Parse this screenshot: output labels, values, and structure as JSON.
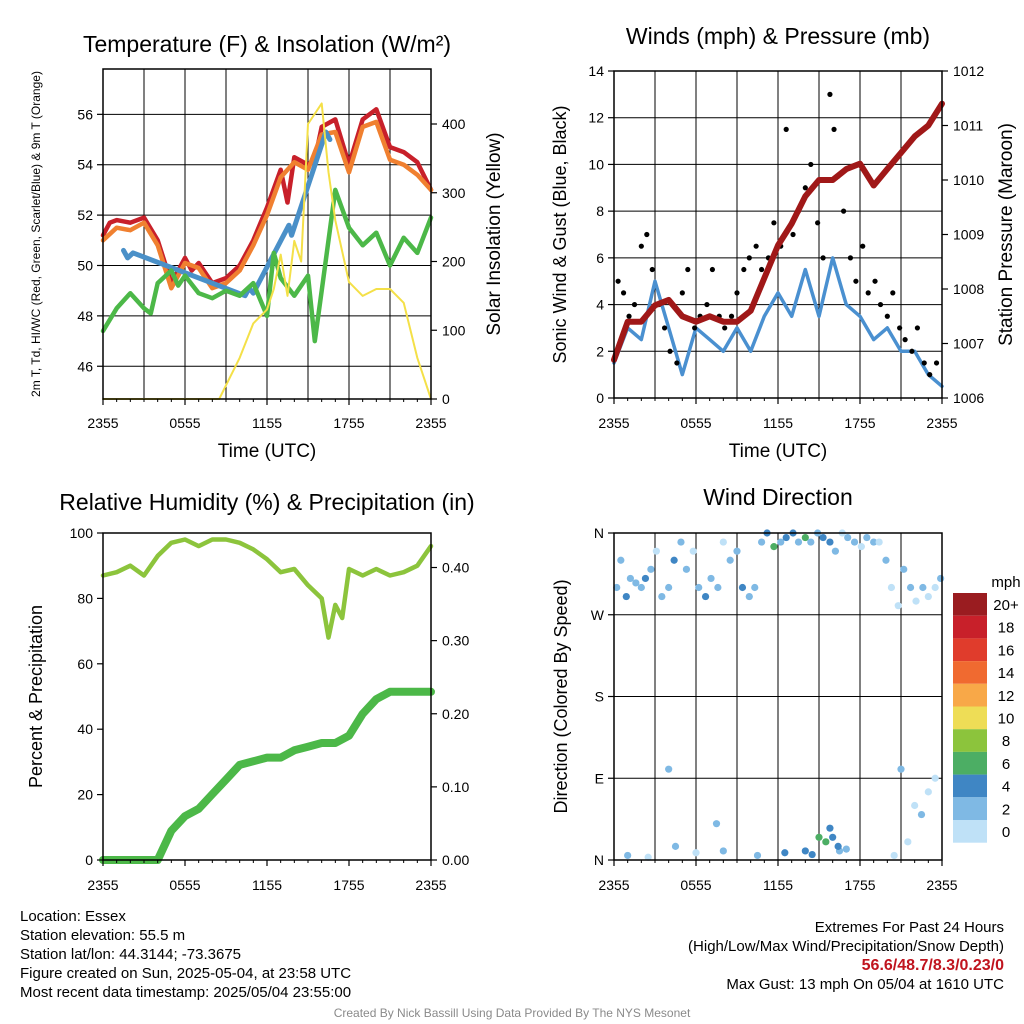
{
  "chart_data": [
    {
      "type": "line",
      "title": "Temperature (F) & Insolation (W/m²)",
      "xlabel": "Time (UTC)",
      "ylabel": "2m T, Td, HI/WC (Red, Green, Scarlet/Blue) & 9m T (Orange)",
      "y2label": "Solar Insolation (Yellow)",
      "x_ticks": [
        "2355",
        "0555",
        "1155",
        "1755",
        "2355"
      ],
      "y_ticks": [
        "46",
        "48",
        "50",
        "52",
        "54",
        "56"
      ],
      "y2_ticks": [
        "0",
        "100",
        "200",
        "300",
        "400"
      ],
      "ylim": [
        44.7,
        57.8
      ],
      "y2lim": [
        0,
        480
      ],
      "grid": true,
      "series": [
        {
          "name": "2m T",
          "color": "#c8202a",
          "axis": "y",
          "x": [
            0,
            0.5,
            1,
            2,
            3,
            4,
            5,
            6,
            6.5,
            7,
            8,
            9,
            10,
            11,
            12,
            13,
            13.5,
            14,
            15,
            15.5,
            16,
            17,
            18,
            19,
            20,
            21,
            22,
            23,
            24
          ],
          "values": [
            51.2,
            51.7,
            51.8,
            51.7,
            51.9,
            51.0,
            49.3,
            50.3,
            49.8,
            50.1,
            49.3,
            49.5,
            50.0,
            51.0,
            52.3,
            53.8,
            52.5,
            54.3,
            54.0,
            54.2,
            55.5,
            55.8,
            54.0,
            55.8,
            56.2,
            54.7,
            54.5,
            54.1,
            53.0
          ]
        },
        {
          "name": "9m T",
          "color": "#f08030",
          "axis": "y",
          "x": [
            0,
            1,
            2,
            3,
            4,
            5,
            6,
            7,
            8,
            9,
            10,
            11,
            12,
            13,
            14,
            15,
            16,
            17,
            18,
            19,
            20,
            21,
            22,
            23,
            24
          ],
          "values": [
            51.0,
            51.5,
            51.4,
            51.7,
            50.8,
            49.1,
            50.1,
            49.9,
            49.1,
            49.3,
            49.8,
            50.8,
            52.0,
            53.5,
            54.1,
            53.8,
            55.2,
            55.3,
            53.7,
            55.5,
            55.7,
            54.2,
            54.0,
            53.6,
            53.0
          ]
        },
        {
          "name": "HI/WC",
          "color": "#4a90c8",
          "axis": "y",
          "x": [
            1.5,
            1.8,
            2.2,
            10.4,
            10.7,
            11.0,
            13.6,
            13.8,
            16.0,
            16.3,
            16.6
          ],
          "values": [
            50.6,
            50.3,
            50.5,
            48.8,
            49.1,
            48.9,
            51.6,
            51.2,
            54.8,
            55.3,
            55.0
          ]
        },
        {
          "name": "2m Td",
          "color": "#4cb848",
          "axis": "y",
          "x": [
            0,
            1,
            2,
            3,
            3.5,
            4,
            5,
            5.5,
            6,
            7,
            8,
            9,
            10,
            11,
            12,
            12.5,
            13,
            14,
            15,
            15.5,
            16,
            17,
            18,
            19,
            20,
            21,
            22,
            23,
            24
          ],
          "values": [
            47.4,
            48.3,
            48.9,
            48.3,
            48.1,
            49.3,
            49.8,
            49.2,
            49.6,
            48.9,
            48.7,
            49.0,
            48.8,
            49.3,
            48.0,
            50.5,
            49.5,
            48.8,
            49.6,
            47.0,
            49.0,
            53.0,
            51.5,
            50.8,
            51.3,
            50.0,
            51.1,
            50.5,
            51.9
          ]
        },
        {
          "name": "Solar Insolation",
          "color": "#f4e048",
          "axis": "y2",
          "x": [
            0,
            8.5,
            9,
            10,
            11,
            12,
            12.5,
            13,
            13.5,
            14,
            14.5,
            15,
            16,
            16.5,
            17,
            18,
            19,
            20,
            21,
            22,
            23,
            24
          ],
          "values": [
            0,
            0,
            20,
            60,
            110,
            130,
            160,
            210,
            150,
            230,
            200,
            400,
            430,
            330,
            260,
            170,
            150,
            160,
            160,
            140,
            60,
            0
          ]
        }
      ]
    },
    {
      "type": "line",
      "title": "Winds (mph) & Pressure (mb)",
      "xlabel": "Time (UTC)",
      "ylabel": "Sonic Wind & Gust (Blue, Black)",
      "y2label": "Station Pressure (Maroon)",
      "x_ticks": [
        "2355",
        "0555",
        "1155",
        "1755",
        "2355"
      ],
      "y_ticks": [
        "0",
        "2",
        "4",
        "6",
        "8",
        "10",
        "12",
        "14"
      ],
      "y2_ticks": [
        "1006",
        "1007",
        "1008",
        "1009",
        "1010",
        "1011",
        "1012"
      ],
      "ylim": [
        0,
        14
      ],
      "y2lim": [
        1006,
        1012
      ],
      "grid": true,
      "series": [
        {
          "name": "Sonic Wind",
          "color": "#4a90d0",
          "axis": "y",
          "x": [
            0,
            1,
            2,
            3,
            4,
            5,
            6,
            7,
            8,
            9,
            10,
            11,
            12,
            13,
            14,
            15,
            16,
            17,
            18,
            19,
            20,
            21,
            22,
            23,
            24
          ],
          "values": [
            1.5,
            3.0,
            2.5,
            5.0,
            3.0,
            1.0,
            3.0,
            2.5,
            2.0,
            3.0,
            2.0,
            3.5,
            4.5,
            3.5,
            5.5,
            3.5,
            6.0,
            4.0,
            3.5,
            2.5,
            3.0,
            2.0,
            2.0,
            1.0,
            0.5
          ]
        },
        {
          "name": "Gust",
          "color": "#000000",
          "axis": "y",
          "style": "points",
          "x": [
            0.3,
            0.7,
            1.1,
            1.5,
            2.0,
            2.4,
            2.8,
            3.3,
            3.7,
            4.1,
            4.6,
            5.0,
            5.4,
            5.9,
            6.3,
            6.8,
            7.2,
            7.7,
            8.1,
            8.6,
            9.0,
            9.5,
            9.9,
            10.4,
            10.8,
            11.3,
            11.7,
            12.2,
            12.6,
            13.1,
            13.5,
            14.0,
            14.4,
            14.9,
            15.3,
            15.8,
            16.1,
            16.4,
            16.8,
            17.3,
            17.7,
            18.2,
            18.6,
            19.1,
            19.5,
            20.0,
            20.4,
            20.9,
            21.3,
            21.8,
            22.2,
            22.7,
            23.1,
            23.6
          ],
          "values": [
            5.0,
            4.5,
            3.5,
            4.0,
            6.5,
            7.0,
            5.5,
            4.0,
            3.0,
            2.0,
            1.5,
            4.5,
            5.5,
            3.0,
            3.5,
            4.0,
            5.5,
            3.5,
            3.0,
            3.5,
            4.5,
            5.5,
            6.0,
            6.5,
            5.5,
            6.0,
            7.5,
            6.5,
            11.5,
            7.0,
            8.0,
            9.0,
            10.0,
            7.5,
            6.0,
            13.0,
            11.5,
            9.5,
            8.0,
            6.0,
            5.0,
            6.5,
            4.5,
            5.0,
            4.0,
            3.5,
            4.5,
            3.0,
            2.5,
            2.0,
            3.0,
            1.5,
            1.0,
            1.5
          ]
        },
        {
          "name": "Station Pressure",
          "color": "#a01818",
          "axis": "y2",
          "x": [
            0,
            1,
            2,
            3,
            4,
            5,
            6,
            7,
            8,
            9,
            10,
            11,
            12,
            13,
            14,
            15,
            16,
            17,
            18,
            19,
            20,
            21,
            22,
            23,
            24
          ],
          "values": [
            1006.7,
            1007.4,
            1007.4,
            1007.7,
            1007.8,
            1007.5,
            1007.4,
            1007.5,
            1007.4,
            1007.4,
            1007.6,
            1008.2,
            1008.8,
            1009.2,
            1009.7,
            1010.0,
            1010.0,
            1010.2,
            1010.3,
            1009.9,
            1010.2,
            1010.5,
            1010.8,
            1011.0,
            1011.4
          ]
        }
      ]
    },
    {
      "type": "line",
      "title": "Relative Humidity (%) & Precipitation (in)",
      "xlabel": "",
      "ylabel": "Percent & Precipitation",
      "x_ticks": [
        "2355",
        "0555",
        "1155",
        "1755",
        "2355"
      ],
      "y_ticks": [
        "0",
        "20",
        "40",
        "60",
        "80",
        "100"
      ],
      "y2_ticks": [
        "0.00",
        "0.10",
        "0.20",
        "0.30",
        "0.40"
      ],
      "ylim": [
        0,
        100
      ],
      "y2lim": [
        0,
        0.4472
      ],
      "grid": false,
      "series": [
        {
          "name": "Relative Humidity",
          "color": "#8cc43c",
          "axis": "y",
          "x": [
            0,
            1,
            2,
            3,
            4,
            5,
            6,
            7,
            8,
            9,
            10,
            11,
            12,
            13,
            14,
            15,
            16,
            16.5,
            17,
            17.5,
            18,
            19,
            20,
            21,
            22,
            23,
            24
          ],
          "values": [
            87,
            88,
            90,
            87,
            93,
            97,
            98,
            96,
            98,
            98,
            97,
            95,
            92,
            88,
            89,
            84,
            80,
            68,
            78,
            74,
            89,
            87,
            89,
            87,
            88,
            90,
            96
          ]
        },
        {
          "name": "Precipitation",
          "color": "#4cb848",
          "axis": "y2",
          "x": [
            0,
            4,
            5,
            6,
            7,
            8,
            9,
            10,
            11,
            12,
            13,
            14,
            15,
            16,
            17,
            18,
            19,
            20,
            21,
            22,
            23,
            24
          ],
          "values": [
            0.0,
            0.0,
            0.04,
            0.06,
            0.07,
            0.09,
            0.11,
            0.13,
            0.135,
            0.14,
            0.14,
            0.15,
            0.155,
            0.16,
            0.16,
            0.17,
            0.2,
            0.22,
            0.23,
            0.23,
            0.23,
            0.23
          ]
        }
      ]
    },
    {
      "type": "scatter",
      "title": "Wind Direction",
      "xlabel": "",
      "ylabel": "Direction (Colored By Speed)",
      "x_ticks": [
        "2355",
        "0555",
        "1155",
        "1755",
        "2355"
      ],
      "y_ticks": [
        "N",
        "E",
        "S",
        "W",
        "N"
      ],
      "ylim": [
        0,
        360
      ],
      "grid": true,
      "legend": {
        "title": "mph",
        "placement": "right",
        "labels": [
          "20+",
          "18",
          "16",
          "14",
          "12",
          "10",
          "8",
          "6",
          "4",
          "2",
          "0"
        ],
        "colors": [
          "#9a1c20",
          "#c8202a",
          "#e03c2c",
          "#f06a30",
          "#f8a848",
          "#eedd56",
          "#8cc43c",
          "#4cae64",
          "#3f86c4",
          "#7fb9e4",
          "#bfe1f7"
        ]
      },
      "points": {
        "x": [
          0.2,
          0.5,
          0.9,
          1.2,
          1.6,
          2.0,
          2.3,
          2.7,
          3.1,
          3.5,
          4.0,
          4.4,
          4.9,
          5.3,
          5.8,
          6.2,
          6.7,
          7.1,
          7.6,
          8.0,
          8.5,
          9.0,
          9.4,
          9.9,
          10.3,
          10.8,
          11.2,
          11.7,
          12.2,
          12.6,
          13.1,
          13.5,
          14.0,
          14.4,
          14.9,
          15.3,
          15.8,
          16.2,
          16.7,
          17.1,
          17.6,
          18.1,
          18.5,
          19.0,
          19.4,
          19.9,
          20.3,
          20.8,
          21.2,
          21.7,
          22.1,
          22.6,
          23.0,
          23.5,
          23.9,
          1.0,
          2.5,
          4.5,
          6.0,
          8.0,
          10.5,
          12.5,
          14.5,
          15.5,
          16.0,
          16.5,
          17.0,
          20.5,
          21.5,
          22.5,
          23.0,
          23.5,
          4.0,
          7.5,
          14.0,
          15.0,
          15.8,
          16.4,
          21.0,
          22.0
        ],
        "y": [
          300,
          330,
          290,
          310,
          305,
          300,
          310,
          320,
          340,
          290,
          300,
          330,
          350,
          320,
          340,
          300,
          290,
          310,
          300,
          350,
          330,
          340,
          300,
          290,
          300,
          350,
          360,
          345,
          350,
          355,
          360,
          350,
          355,
          350,
          360,
          355,
          350,
          340,
          360,
          355,
          350,
          345,
          355,
          350,
          350,
          330,
          300,
          280,
          320,
          300,
          285,
          300,
          290,
          300,
          310,
          5,
          3,
          15,
          8,
          10,
          5,
          8,
          6,
          20,
          25,
          10,
          12,
          5,
          20,
          50,
          75,
          90,
          100,
          40,
          10,
          25,
          35,
          15,
          100,
          60
        ],
        "speed": [
          3,
          2,
          4,
          2,
          3,
          2,
          4,
          3,
          1,
          2,
          3,
          4,
          2,
          3,
          1,
          2,
          4,
          3,
          2,
          1,
          3,
          2,
          4,
          3,
          2,
          3,
          4,
          6,
          3,
          5,
          4,
          3,
          6,
          2,
          3,
          5,
          4,
          2,
          1,
          3,
          2,
          1,
          2,
          3,
          1,
          2,
          1,
          1,
          3,
          2,
          1,
          2,
          1,
          1,
          2,
          3,
          1,
          2,
          1,
          2,
          3,
          4,
          5,
          6,
          4,
          3,
          2,
          1,
          1,
          2,
          1,
          1,
          2,
          2,
          4,
          6,
          5,
          4,
          2,
          1
        ]
      }
    }
  ],
  "station_info": {
    "location": "Location: Essex",
    "elevation": "Station elevation: 55.5 m",
    "latlon": "Station lat/lon: 44.3144; -73.3675",
    "created": "Figure created on Sun, 2025-05-04, at 23:58 UTC",
    "recent": "Most recent data timestamp: 2025/05/04 23:55:00"
  },
  "extremes": {
    "title": "Extremes For Past 24 Hours",
    "subtitle": "(High/Low/Max Wind/Precipitation/Snow Depth)",
    "values": "56.6/48.7/8.3/0.23/0",
    "gust": "Max Gust: 13 mph On 05/04 at 1610 UTC"
  },
  "credit": "Created By Nick Bassill Using Data Provided By The NYS Mesonet"
}
